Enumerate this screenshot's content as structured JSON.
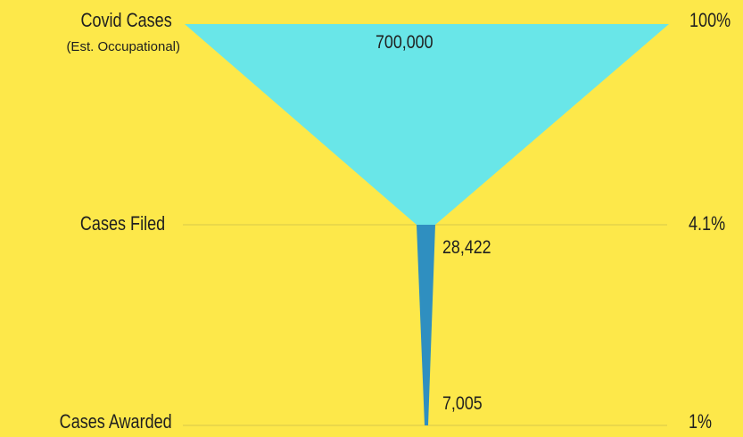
{
  "chart_data": {
    "type": "funnel",
    "title": "",
    "stages": [
      {
        "label": "Covid Cases",
        "sublabel": "(Est. Occupational)",
        "value": 700000,
        "value_label": "700,000",
        "percent_label": "100%"
      },
      {
        "label": "Cases Filed",
        "value": 28422,
        "value_label": "28,422",
        "percent_label": "4.1%"
      },
      {
        "label": "Cases Awarded",
        "value": 7005,
        "value_label": "7,005",
        "percent_label": "1%"
      }
    ],
    "colors": {
      "background": "#fde84a",
      "top_segment": "#69e6e8",
      "lower_segment": "#2f8fc0",
      "gridline": "#d8c94a",
      "text": "#1f1f1f"
    },
    "grid": true
  }
}
